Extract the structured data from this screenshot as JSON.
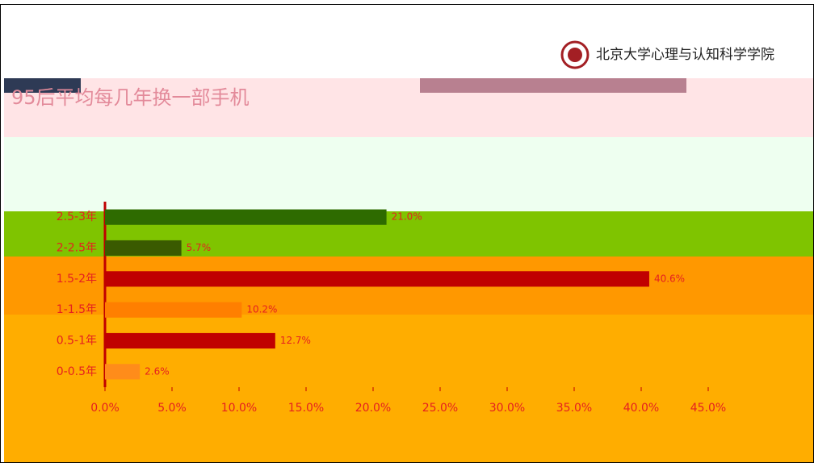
{
  "header": {
    "logo_text": "北京大学心理与认知科学学院"
  },
  "chart_data": {
    "type": "hbar",
    "title": "95后平均每几年换一部手机",
    "categories": [
      "2.5-3年",
      "2-2.5年",
      "1.5-2年",
      "1-1.5年",
      "0.5-1年",
      "0-0.5年"
    ],
    "values": [
      21.0,
      5.7,
      40.6,
      10.2,
      12.7,
      2.6
    ],
    "value_labels": [
      "21.0%",
      "5.7%",
      "40.6%",
      "10.2%",
      "12.7%",
      "2.6%"
    ],
    "colors": [
      "#2e6b00",
      "#3a5a00",
      "#c00000",
      "#ff7f00",
      "#c00000",
      "#ff8c1a"
    ],
    "xlim": [
      0,
      50
    ],
    "xticks": [
      {
        "value": 0,
        "label": "0.0%"
      },
      {
        "value": 5,
        "label": "5.0%"
      },
      {
        "value": 10,
        "label": "10.0%"
      },
      {
        "value": 15,
        "label": "15.0%"
      },
      {
        "value": 20,
        "label": "20.0%"
      },
      {
        "value": 25,
        "label": "25.0%"
      },
      {
        "value": 30,
        "label": "30.0%"
      },
      {
        "value": 35,
        "label": "35.0%"
      },
      {
        "value": 40,
        "label": "40.0%"
      },
      {
        "value": 45,
        "label": "45.0%"
      }
    ]
  }
}
